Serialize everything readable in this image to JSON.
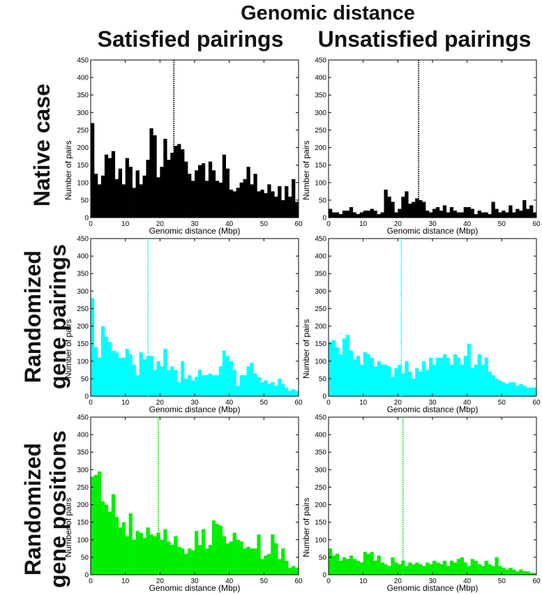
{
  "figure": {
    "title": "Genomic distance",
    "columns": [
      "Satisfied pairings",
      "Unsatisfied pairings"
    ],
    "rows": [
      {
        "line1": "Native case",
        "line2": ""
      },
      {
        "line1": "Randomized",
        "line2": "gene pairings"
      },
      {
        "line1": "Randomized",
        "line2": "gene positions"
      }
    ]
  },
  "colors": {
    "black": "#000000",
    "cyan": "#00ffff",
    "green": "#00ee00"
  },
  "chart_data": [
    {
      "type": "bar",
      "row": "Native case",
      "column": "Satisfied pairings",
      "color": "#000000",
      "xlabel": "Genomic distance (Mbp)",
      "ylabel": "Number of pairs",
      "xlim": [
        0,
        60
      ],
      "ylim": [
        0,
        450
      ],
      "xticks": [
        0,
        10,
        20,
        30,
        40,
        50,
        60
      ],
      "yticks": [
        0,
        50,
        100,
        150,
        200,
        250,
        300,
        350,
        400,
        450
      ],
      "bin_width": 1,
      "vline": 24,
      "values": [
        270,
        125,
        95,
        120,
        180,
        170,
        190,
        110,
        140,
        95,
        170,
        145,
        85,
        135,
        95,
        120,
        165,
        255,
        235,
        115,
        145,
        225,
        165,
        185,
        205,
        210,
        195,
        160,
        125,
        105,
        135,
        150,
        155,
        105,
        160,
        135,
        105,
        100,
        180,
        140,
        80,
        75,
        85,
        100,
        110,
        145,
        95,
        125,
        75,
        80,
        70,
        95,
        75,
        60,
        90,
        50,
        90,
        60,
        110,
        45
      ]
    },
    {
      "type": "bar",
      "row": "Native case",
      "column": "Unsatisfied pairings",
      "color": "#000000",
      "xlabel": "Genomic distance (Mbp)",
      "ylabel": "Number of pairs",
      "xlim": [
        0,
        60
      ],
      "ylim": [
        0,
        450
      ],
      "xticks": [
        0,
        10,
        20,
        30,
        40,
        50,
        60
      ],
      "yticks": [
        0,
        50,
        100,
        150,
        200,
        250,
        300,
        350,
        400,
        450
      ],
      "bin_width": 1,
      "vline": 26,
      "values": [
        25,
        15,
        15,
        10,
        20,
        20,
        30,
        15,
        10,
        15,
        20,
        20,
        25,
        20,
        10,
        15,
        80,
        60,
        45,
        15,
        25,
        60,
        75,
        40,
        45,
        55,
        50,
        45,
        20,
        15,
        25,
        30,
        20,
        35,
        15,
        30,
        20,
        15,
        15,
        30,
        30,
        25,
        10,
        20,
        15,
        15,
        10,
        45,
        25,
        15,
        20,
        15,
        35,
        15,
        25,
        20,
        50,
        25,
        35,
        15
      ]
    },
    {
      "type": "bar",
      "row": "Randomized gene pairings",
      "column": "Satisfied pairings",
      "color": "#00ffff",
      "xlabel": "Genomic distance (Mbp)",
      "ylabel": "Number of pairs",
      "xlim": [
        0,
        60
      ],
      "ylim": [
        0,
        450
      ],
      "xticks": [
        0,
        10,
        20,
        30,
        40,
        50,
        60
      ],
      "yticks": [
        0,
        50,
        100,
        150,
        200,
        250,
        300,
        350,
        400,
        450
      ],
      "bin_width": 1,
      "vline": 16.5,
      "values": [
        280,
        140,
        110,
        200,
        170,
        155,
        130,
        125,
        110,
        110,
        135,
        120,
        90,
        60,
        125,
        105,
        115,
        115,
        75,
        100,
        85,
        135,
        75,
        85,
        75,
        40,
        100,
        50,
        60,
        45,
        55,
        75,
        60,
        60,
        65,
        60,
        60,
        85,
        130,
        115,
        100,
        75,
        30,
        60,
        60,
        85,
        95,
        65,
        55,
        40,
        45,
        35,
        40,
        30,
        50,
        35,
        25,
        15,
        20,
        15
      ]
    },
    {
      "type": "bar",
      "row": "Randomized gene pairings",
      "column": "Unsatisfied pairings",
      "color": "#00ffff",
      "xlabel": "Genomic distance (Mbp)",
      "ylabel": "Number of pairs",
      "xlim": [
        0,
        60
      ],
      "ylim": [
        0,
        450
      ],
      "xticks": [
        0,
        10,
        20,
        30,
        40,
        50,
        60
      ],
      "yticks": [
        0,
        50,
        100,
        150,
        200,
        250,
        300,
        350,
        400,
        450
      ],
      "bin_width": 1,
      "vline": 21,
      "values": [
        155,
        160,
        140,
        120,
        165,
        175,
        130,
        105,
        115,
        90,
        125,
        120,
        110,
        85,
        100,
        90,
        90,
        85,
        55,
        80,
        90,
        65,
        100,
        70,
        50,
        80,
        70,
        100,
        75,
        110,
        90,
        110,
        110,
        120,
        110,
        90,
        120,
        110,
        90,
        115,
        150,
        80,
        90,
        120,
        90,
        110,
        70,
        60,
        50,
        45,
        40,
        35,
        40,
        40,
        30,
        35,
        30,
        25,
        25,
        25
      ]
    },
    {
      "type": "bar",
      "row": "Randomized gene positions",
      "column": "Satisfied pairings",
      "color": "#00ee00",
      "xlabel": "Genomic distance (Mbp)",
      "ylabel": "Number of pairs",
      "xlim": [
        0,
        60
      ],
      "ylim": [
        0,
        450
      ],
      "xticks": [
        0,
        10,
        20,
        30,
        40,
        50,
        60
      ],
      "yticks": [
        0,
        50,
        100,
        150,
        200,
        250,
        300,
        350,
        400,
        450
      ],
      "bin_width": 1,
      "vline": 19.5,
      "values": [
        280,
        285,
        295,
        210,
        200,
        180,
        230,
        165,
        135,
        150,
        110,
        175,
        100,
        125,
        120,
        105,
        135,
        115,
        110,
        120,
        100,
        130,
        95,
        85,
        110,
        80,
        75,
        60,
        75,
        70,
        125,
        85,
        130,
        75,
        85,
        155,
        145,
        140,
        110,
        90,
        95,
        120,
        100,
        95,
        75,
        80,
        75,
        75,
        115,
        45,
        55,
        60,
        115,
        90,
        45,
        75,
        40,
        20,
        25,
        20
      ]
    },
    {
      "type": "bar",
      "row": "Randomized gene positions",
      "column": "Unsatisfied pairings",
      "color": "#00ee00",
      "xlabel": "Genomic distance (Mbp)",
      "ylabel": "Number of pairs",
      "xlim": [
        0,
        60
      ],
      "ylim": [
        0,
        450
      ],
      "xticks": [
        0,
        10,
        20,
        30,
        40,
        50,
        60
      ],
      "yticks": [
        0,
        50,
        100,
        150,
        200,
        250,
        300,
        350,
        400,
        450
      ],
      "bin_width": 1,
      "vline": 21.5,
      "values": [
        75,
        55,
        60,
        40,
        50,
        45,
        55,
        45,
        40,
        35,
        65,
        60,
        65,
        40,
        55,
        35,
        30,
        25,
        50,
        35,
        30,
        40,
        25,
        35,
        30,
        35,
        30,
        25,
        35,
        30,
        40,
        35,
        30,
        40,
        25,
        40,
        35,
        45,
        50,
        35,
        25,
        45,
        40,
        30,
        25,
        40,
        30,
        25,
        50,
        25,
        20,
        15,
        20,
        15,
        10,
        15,
        10,
        10,
        5,
        5
      ]
    }
  ]
}
